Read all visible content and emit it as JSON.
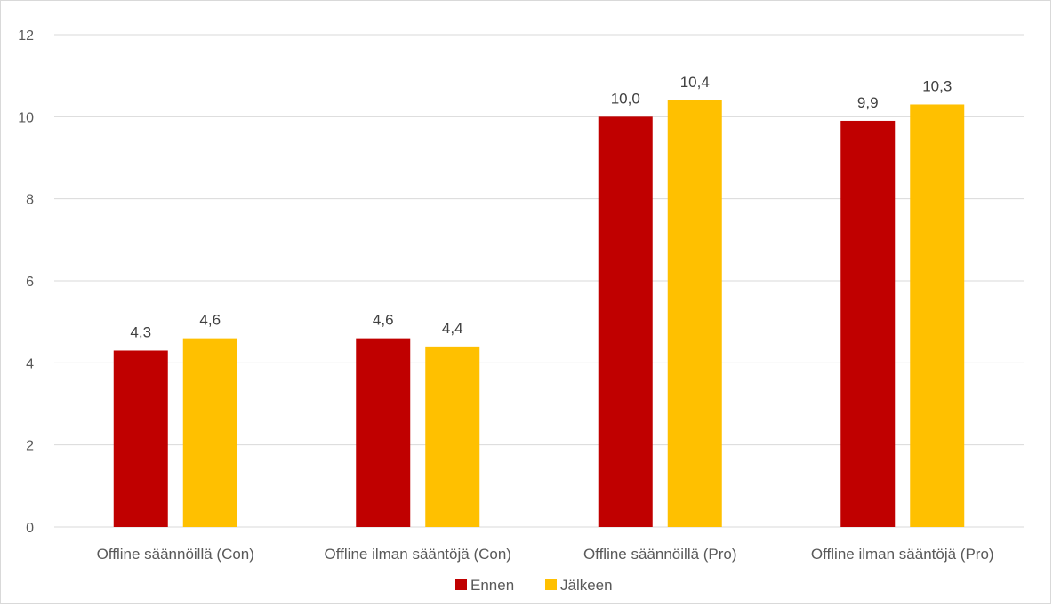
{
  "chart_data": {
    "type": "bar",
    "categories": [
      "Offline säännöillä (Con)",
      "Offline ilman sääntöjä (Con)",
      "Offline säännöillä (Pro)",
      "Offline ilman sääntöjä (Pro)"
    ],
    "series": [
      {
        "name": "Ennen",
        "color": "#c00000",
        "values": [
          4.3,
          4.6,
          10.0,
          9.9
        ],
        "labels": [
          "4,3",
          "4,6",
          "10,0",
          "9,9"
        ]
      },
      {
        "name": "Jälkeen",
        "color": "#ffc000",
        "values": [
          4.6,
          4.4,
          10.4,
          10.3
        ],
        "labels": [
          "4,6",
          "4,4",
          "10,4",
          "10,3"
        ]
      }
    ],
    "title": "",
    "xlabel": "",
    "ylabel": "",
    "ylim": [
      0,
      12
    ],
    "yticks": [
      0,
      2,
      4,
      6,
      8,
      10,
      12
    ],
    "grid": true,
    "legend_position": "bottom"
  }
}
